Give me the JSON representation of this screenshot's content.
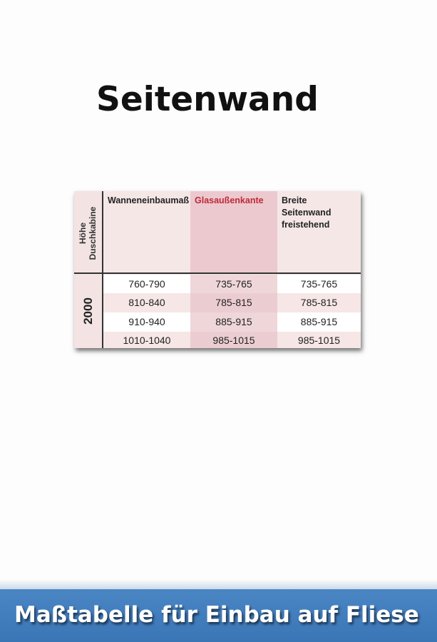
{
  "page": {
    "title": "Seitenwand"
  },
  "table": {
    "row_header_label": "Höhe Duschkabine",
    "row_header_label_lines": [
      "Höhe",
      "Duschkabine"
    ],
    "height_value": "2000",
    "columns": [
      "Wanneneinbaumaß",
      "Glasaußenkante",
      "Breite Seitenwand freistehend"
    ],
    "highlight_column_color": "#c0283a",
    "rows": [
      [
        "760-790",
        "735-765",
        "735-765"
      ],
      [
        "810-840",
        "785-815",
        "785-815"
      ],
      [
        "910-940",
        "885-915",
        "885-915"
      ],
      [
        "1010-1040",
        "985-1015",
        "985-1015"
      ]
    ]
  },
  "footer": {
    "caption": "Maßtabelle für Einbau auf Fliese",
    "color": "#3b7bbf"
  }
}
